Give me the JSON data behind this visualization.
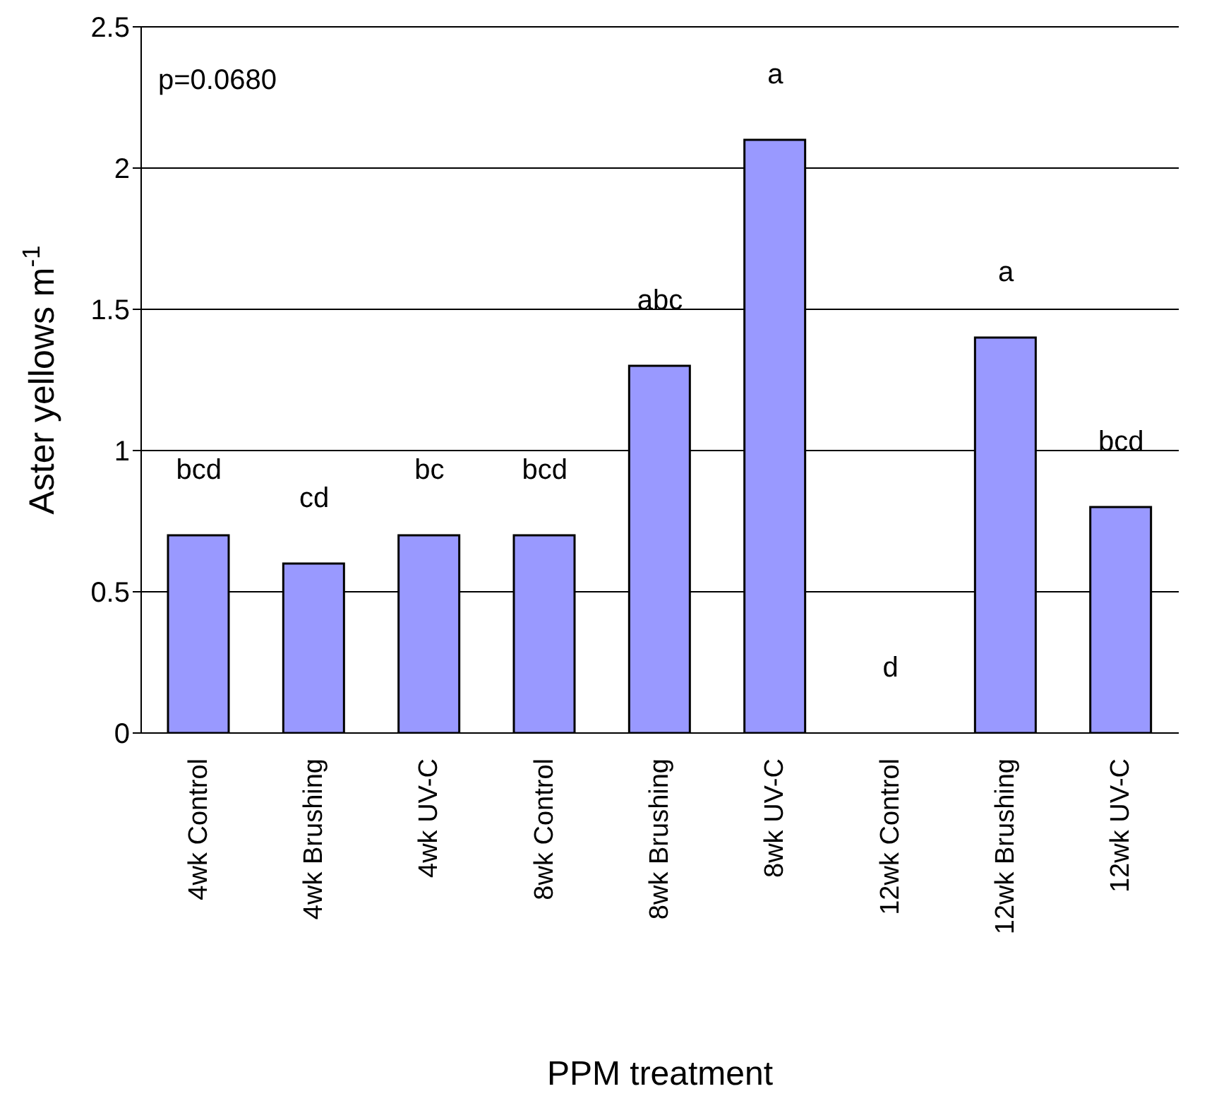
{
  "chart_data": {
    "type": "bar",
    "xlabel": "PPM treatment",
    "ylabel": "Aster yellows m$^{-1}$",
    "categories": [
      "4wk Control",
      "4wk Brushing",
      "4wk UV-C",
      "8wk Control",
      "8wk Brushing",
      "8wk UV-C",
      "12wk Control",
      "12wk Brushing",
      "12wk UV-C"
    ],
    "values": [
      0.7,
      0.6,
      0.7,
      0.7,
      1.3,
      2.1,
      0,
      1.4,
      0.8
    ],
    "color": "#9999ff",
    "ylim": [
      0,
      2.5
    ],
    "yticks": [
      0,
      0.5,
      1,
      1.5,
      2,
      2.5
    ],
    "grid": "y",
    "legend": false,
    "annotations": [
      "p=0.0680",
      {
        "text": "bcd",
        "x": "4wk Control",
        "y": 0.7
      },
      {
        "text": "cd",
        "x": "4wk Brushing",
        "y": 0.6
      },
      {
        "text": "bc",
        "x": "4wk UV-C",
        "y": 0.7
      },
      {
        "text": "bcd",
        "x": "8wk Control",
        "y": 0.7
      },
      {
        "text": "abc",
        "x": "8wk Brushing",
        "y": 1.3
      },
      {
        "text": "a",
        "x": "8wk UV-C",
        "y": 2.1
      },
      {
        "text": "d",
        "x": "12wk Control",
        "y": 0
      },
      {
        "text": "a",
        "x": "12wk Brushing",
        "y": 1.4
      },
      {
        "text": "bcd",
        "x": "12wk UV-C",
        "y": 0.8
      }
    ]
  }
}
